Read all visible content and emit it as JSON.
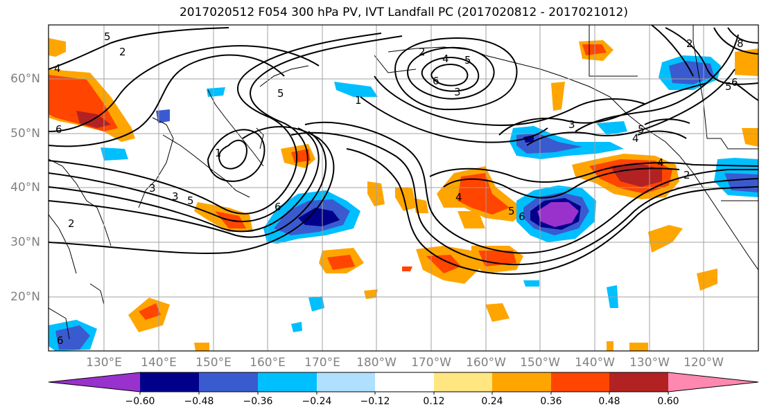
{
  "title": "2017020512 F054 300 hPa PV, IVT Landfall PC (2017020812 - 2017021012)",
  "map": {
    "latitude_labels": [
      "60°N",
      "50°N",
      "40°N",
      "30°N",
      "20°N"
    ],
    "longitude_labels": [
      "130°E",
      "140°E",
      "150°E",
      "160°E",
      "170°E",
      "180°W",
      "170°W",
      "160°W",
      "150°W",
      "140°W",
      "130°W",
      "120°W"
    ],
    "pv_contour_labels": [
      "5",
      "4",
      "2",
      "6",
      "6",
      "5",
      "1",
      "2",
      "4",
      "5",
      "3",
      "6",
      "3",
      "1",
      "5",
      "3",
      "5",
      "4",
      "2",
      "4",
      "8",
      "6",
      "2",
      "5",
      "3",
      "4",
      "6",
      "5",
      "6",
      "2"
    ]
  },
  "colorbar": {
    "tick_labels": [
      "−0.60",
      "−0.48",
      "−0.36",
      "−0.24",
      "−0.12",
      "0.12",
      "0.24",
      "0.36",
      "0.48",
      "0.60"
    ],
    "colors": [
      "#9932cc",
      "#00008b",
      "#3a5bd0",
      "#00bfff",
      "#b0e0ff",
      "#ffffff",
      "#ffe680",
      "#ffa500",
      "#ff4500",
      "#b22222",
      "#ff88b0"
    ]
  }
}
